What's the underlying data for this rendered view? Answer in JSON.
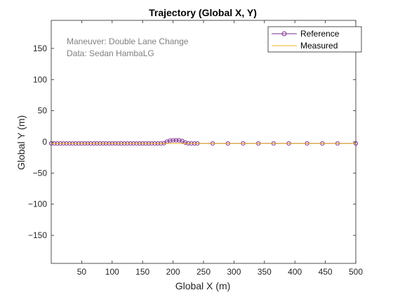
{
  "chart_data": {
    "type": "line",
    "title": "Trajectory (Global X, Y)",
    "xlabel": "Global X (m)",
    "ylabel": "Global Y (m)",
    "xlim": [
      0,
      500
    ],
    "ylim": [
      -195,
      195
    ],
    "xticks": [
      50,
      100,
      150,
      200,
      250,
      300,
      350,
      400,
      450,
      500
    ],
    "yticks": [
      -150,
      -100,
      -50,
      0,
      50,
      100,
      150
    ],
    "grid": false,
    "legend_position": "top-right",
    "annotations": [
      "Maneuver: Double Lane Change",
      "Data: Sedan HambaLG"
    ],
    "series": [
      {
        "name": "Reference",
        "color": "#7E2F8E",
        "marker": "circle",
        "x": [
          0,
          5,
          10,
          15,
          20,
          25,
          30,
          35,
          40,
          45,
          50,
          55,
          60,
          65,
          70,
          75,
          80,
          85,
          90,
          95,
          100,
          105,
          110,
          115,
          120,
          125,
          130,
          135,
          140,
          145,
          150,
          155,
          160,
          165,
          170,
          175,
          180,
          185,
          190,
          195,
          200,
          205,
          210,
          215,
          220,
          225,
          230,
          235,
          240,
          265,
          290,
          315,
          340,
          365,
          390,
          420,
          445,
          470,
          500
        ],
        "y": [
          -2.5,
          -2.5,
          -2.5,
          -2.5,
          -2.5,
          -2.5,
          -2.5,
          -2.5,
          -2.5,
          -2.5,
          -2.5,
          -2.5,
          -2.5,
          -2.5,
          -2.5,
          -2.5,
          -2.5,
          -2.5,
          -2.5,
          -2.5,
          -2.5,
          -2.5,
          -2.5,
          -2.5,
          -2.5,
          -2.5,
          -2.5,
          -2.5,
          -2.5,
          -2.5,
          -2.5,
          -2.5,
          -2.5,
          -2.5,
          -2.5,
          -2.5,
          -2.5,
          -2.0,
          0.5,
          2.0,
          2.5,
          2.5,
          2.5,
          1.5,
          -1.0,
          -2.3,
          -2.5,
          -2.5,
          -2.5,
          -2.5,
          -2.5,
          -2.5,
          -2.5,
          -2.5,
          -2.5,
          -2.5,
          -2.5,
          -2.5,
          -2.5
        ]
      },
      {
        "name": "Measured",
        "color": "#EDB120",
        "marker": "none",
        "x": [
          0,
          240,
          500
        ],
        "y": [
          -2.5,
          -2.5,
          -2.5
        ]
      }
    ]
  }
}
